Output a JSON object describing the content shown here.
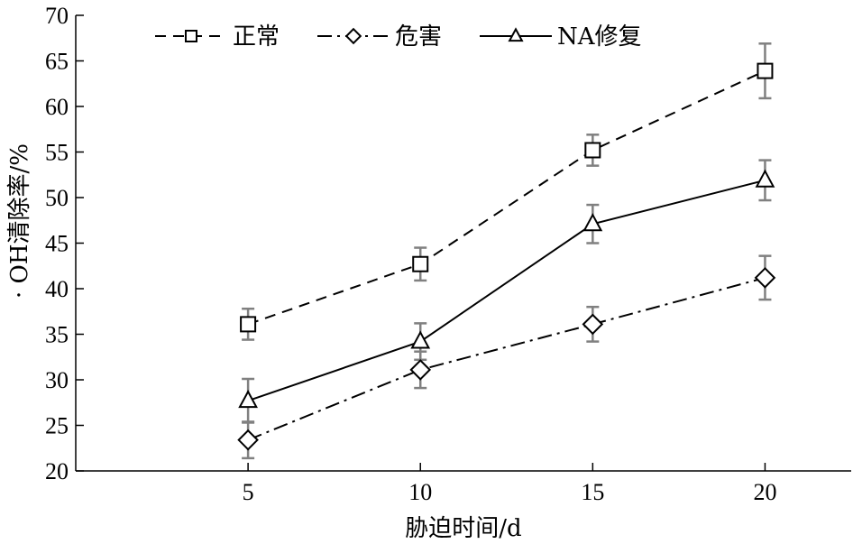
{
  "chart_data": {
    "type": "line",
    "x": [
      5,
      10,
      15,
      20
    ],
    "xlabel": "胁迫时间/d",
    "ylabel": "· OH清除率/%",
    "xlim": [
      0,
      22.5
    ],
    "ylim": [
      20,
      70
    ],
    "xticks": [
      "5",
      "10",
      "15",
      "20"
    ],
    "yticks": [
      "20",
      "25",
      "30",
      "35",
      "40",
      "45",
      "50",
      "55",
      "60",
      "65",
      "70"
    ],
    "grid": false,
    "legend_position": "top",
    "series": [
      {
        "name": "正常",
        "marker": "square",
        "line_style": "dashed",
        "values": [
          36.1,
          42.7,
          55.2,
          63.9
        ],
        "errors": [
          1.7,
          1.8,
          1.7,
          3.0
        ]
      },
      {
        "name": "危害",
        "marker": "diamond",
        "line_style": "dash-dot",
        "values": [
          23.4,
          31.1,
          36.1,
          41.2
        ],
        "errors": [
          2.0,
          2.0,
          1.9,
          2.4
        ]
      },
      {
        "name": "NA修复",
        "marker": "triangle",
        "line_style": "solid",
        "values": [
          27.7,
          34.2,
          47.1,
          51.9
        ],
        "errors": [
          2.4,
          2.0,
          2.1,
          2.2
        ]
      }
    ],
    "colors": {
      "line": "#000000",
      "error_bar": "#808080"
    }
  }
}
